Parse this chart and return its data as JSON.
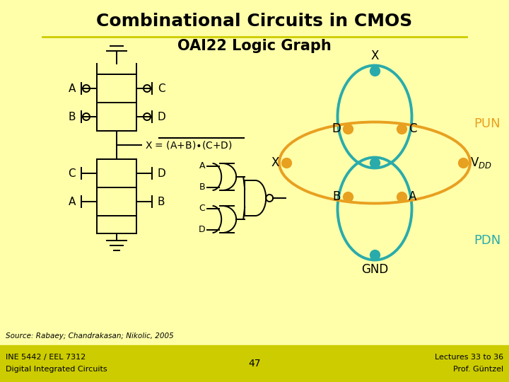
{
  "title1": "Combinational Circuits in CMOS",
  "title2": "OAI22 Logic Graph",
  "bg_color": "#ffffaa",
  "title_color": "#000000",
  "teal_color": "#2aabab",
  "orange_color": "#e8a020",
  "source_text": "Source: Rabaey; Chandrakasan; Nikolic, 2005",
  "bottom_left": "INE 5442 / EEL 7312\nDigital Integrated Circuits",
  "bottom_center": "47",
  "bottom_right": "Lectures 33 to 36\nProf. Güntzel",
  "line_color": "#cccc00"
}
